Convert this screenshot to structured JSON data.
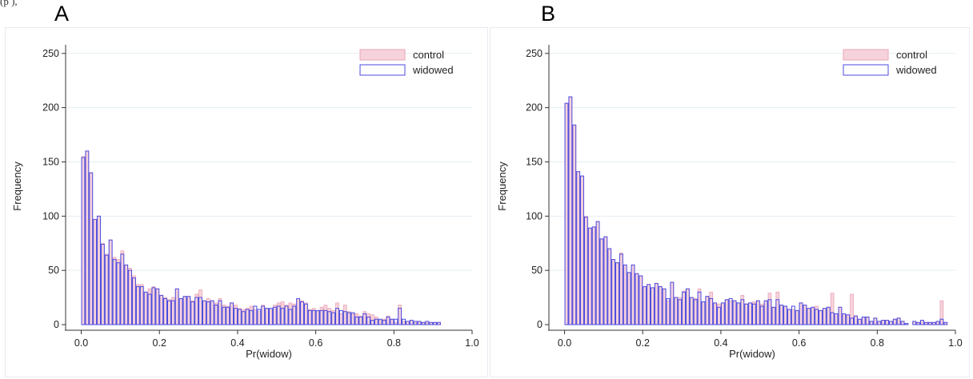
{
  "header": {
    "cut_text": "(p         ),",
    "panel_a_label": "A",
    "panel_b_label": "B"
  },
  "colors": {
    "control_fill": "#f6d3dc",
    "control_stroke": "#e8a6b6",
    "widowed_stroke": "#4b4bdf",
    "grid": "#e4eef2",
    "axis": "#333333"
  },
  "chart_data": [
    {
      "panel": "A",
      "type": "bar",
      "xlabel": "Pr(widow)",
      "ylabel": "Frequency",
      "xlim": [
        -0.04,
        1.0
      ],
      "ylim": [
        0,
        255
      ],
      "xticks": [
        0.0,
        0.2,
        0.4,
        0.6,
        0.8,
        1.0
      ],
      "xtick_labels": [
        "0.0",
        "0.2",
        "0.4",
        "0.6",
        "0.8",
        "1.0"
      ],
      "yticks": [
        0,
        50,
        100,
        150,
        200,
        250
      ],
      "ytick_labels": [
        "0",
        "50",
        "100",
        "150",
        "200",
        "250"
      ],
      "grid": "horizontal",
      "legend_position": "top-right",
      "bin_width": 0.01,
      "bin_start": 0.0,
      "series": [
        {
          "name": "control",
          "style": "filled",
          "values": [
            155,
            160,
            140,
            97,
            100,
            75,
            65,
            78,
            62,
            60,
            68,
            55,
            52,
            45,
            37,
            37,
            30,
            33,
            35,
            33,
            27,
            25,
            23,
            25,
            33,
            24,
            26,
            25,
            22,
            28,
            32,
            22,
            24,
            22,
            20,
            24,
            18,
            17,
            20,
            18,
            15,
            14,
            15,
            17,
            14,
            12,
            18,
            15,
            14,
            18,
            20,
            21,
            18,
            20,
            19,
            24,
            22,
            20,
            14,
            15,
            12,
            16,
            18,
            15,
            13,
            20,
            10,
            18,
            12,
            10,
            10,
            8,
            12,
            10,
            9,
            7,
            4,
            5,
            8,
            5,
            2,
            18,
            3,
            3,
            4,
            2,
            2,
            2,
            2,
            2,
            2,
            2
          ]
        },
        {
          "name": "widowed",
          "style": "outline",
          "values": [
            154,
            160,
            140,
            97,
            100,
            74,
            64,
            78,
            60,
            57,
            65,
            55,
            50,
            43,
            35,
            35,
            30,
            28,
            34,
            33,
            27,
            24,
            22,
            22,
            33,
            24,
            26,
            26,
            21,
            25,
            25,
            22,
            21,
            22,
            18,
            22,
            16,
            16,
            20,
            15,
            14,
            12,
            14,
            13,
            17,
            14,
            17,
            15,
            15,
            16,
            17,
            15,
            17,
            14,
            17,
            24,
            21,
            19,
            13,
            13,
            13,
            13,
            13,
            12,
            11,
            15,
            13,
            12,
            11,
            11,
            7,
            7,
            10,
            7,
            4,
            5,
            5,
            4,
            7,
            5,
            5,
            15,
            5,
            3,
            4,
            3,
            3,
            2,
            3,
            2,
            2,
            2
          ]
        }
      ]
    },
    {
      "panel": "B",
      "type": "bar",
      "xlabel": "Pr(widow)",
      "ylabel": "Frequency",
      "xlim": [
        -0.04,
        1.0
      ],
      "ylim": [
        0,
        255
      ],
      "xticks": [
        0.0,
        0.2,
        0.4,
        0.6,
        0.8,
        1.0
      ],
      "xtick_labels": [
        "0.0",
        "0.2",
        "0.4",
        "0.6",
        "0.8",
        "1.0"
      ],
      "yticks": [
        0,
        50,
        100,
        150,
        200,
        250
      ],
      "ytick_labels": [
        "0",
        "50",
        "100",
        "150",
        "200",
        "250"
      ],
      "grid": "horizontal",
      "legend_position": "top-right",
      "bin_width": 0.01,
      "bin_start": 0.0,
      "series": [
        {
          "name": "control",
          "style": "filled",
          "values": [
            204,
            210,
            184,
            141,
            137,
            100,
            89,
            90,
            95,
            79,
            81,
            70,
            60,
            57,
            66,
            55,
            48,
            55,
            47,
            45,
            35,
            37,
            34,
            38,
            35,
            33,
            22,
            39,
            25,
            25,
            31,
            33,
            25,
            24,
            33,
            21,
            26,
            30,
            20,
            19,
            20,
            23,
            22,
            22,
            20,
            27,
            19,
            20,
            21,
            22,
            19,
            22,
            29,
            16,
            30,
            18,
            17,
            14,
            14,
            13,
            20,
            18,
            15,
            16,
            17,
            13,
            15,
            16,
            29,
            10,
            16,
            10,
            9,
            28,
            8,
            5,
            7,
            7,
            3,
            6,
            3,
            4,
            4,
            3,
            5,
            6,
            3,
            1,
            0,
            3,
            2,
            4,
            2,
            2,
            2,
            3,
            22,
            2
          ]
        },
        {
          "name": "widowed",
          "style": "outline",
          "values": [
            204,
            210,
            184,
            141,
            137,
            99,
            89,
            90,
            95,
            79,
            81,
            70,
            60,
            57,
            65,
            55,
            48,
            55,
            47,
            45,
            35,
            37,
            34,
            38,
            35,
            33,
            24,
            39,
            25,
            23,
            30,
            33,
            25,
            23,
            30,
            21,
            26,
            24,
            20,
            16,
            20,
            23,
            24,
            22,
            20,
            23,
            19,
            20,
            19,
            22,
            17,
            22,
            23,
            16,
            23,
            18,
            17,
            14,
            17,
            13,
            20,
            18,
            15,
            16,
            14,
            13,
            15,
            16,
            11,
            10,
            16,
            10,
            9,
            6,
            8,
            5,
            7,
            7,
            3,
            6,
            3,
            4,
            4,
            3,
            5,
            6,
            3,
            1,
            0,
            3,
            2,
            4,
            2,
            2,
            2,
            3,
            5,
            2
          ]
        }
      ]
    }
  ]
}
